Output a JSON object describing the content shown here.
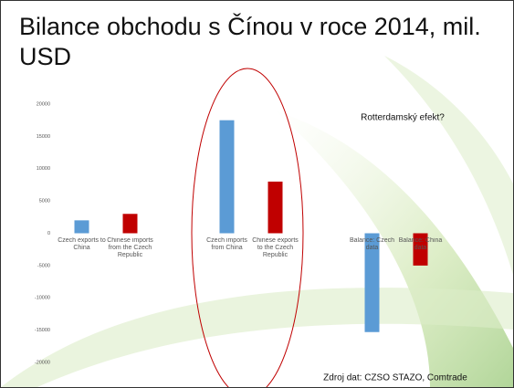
{
  "chart_data": {
    "type": "bar",
    "title": "Bilance obchodu s Čínou v roce 2014, mil. USD",
    "categories": [
      "Czech exports to China",
      "Chinese imports from the Czech Republic",
      null,
      "Czech imports from China",
      "Chinese exports to the Czech Republic",
      null,
      "Balance: Czech data",
      "Balance: China data"
    ],
    "values": [
      2000,
      3000,
      null,
      17500,
      8000,
      null,
      -15300,
      -5000
    ],
    "colors": [
      "#5b9bd5",
      "#c00000",
      null,
      "#5b9bd5",
      "#c00000",
      null,
      "#5b9bd5",
      "#c00000"
    ],
    "ylim": [
      -20000,
      20000
    ],
    "yticks": [
      -20000,
      -15000,
      -10000,
      -5000,
      0,
      5000,
      10000,
      15000,
      20000
    ],
    "annotations": [
      "Rotterdamský efekt?",
      "Zdroj dat: CZSO STAZO, Comtrade"
    ]
  }
}
